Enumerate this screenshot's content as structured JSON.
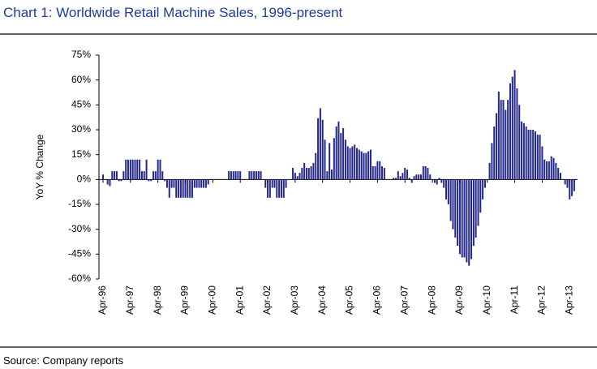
{
  "chart_data": {
    "type": "bar",
    "title": "Chart 1: Worldwide Retail Machine Sales, 1996-present",
    "y_label": "YoY % Change",
    "source": "Source: Company reports",
    "color": "#23288a",
    "ylim": [
      -60,
      75
    ],
    "yticks": [
      {
        "value": -60,
        "label": "-60%"
      },
      {
        "value": -45,
        "label": "-45%"
      },
      {
        "value": -30,
        "label": "-30%"
      },
      {
        "value": -15,
        "label": "-15%"
      },
      {
        "value": 0,
        "label": "0%"
      },
      {
        "value": 15,
        "label": "15%"
      },
      {
        "value": 30,
        "label": "30%"
      },
      {
        "value": 45,
        "label": "45%"
      },
      {
        "value": 60,
        "label": "60%"
      },
      {
        "value": 75,
        "label": "75%"
      }
    ],
    "categories": [
      "Apr-96",
      null,
      null,
      null,
      null,
      null,
      null,
      null,
      null,
      null,
      null,
      null,
      "Apr-97",
      null,
      null,
      null,
      null,
      null,
      null,
      null,
      null,
      null,
      null,
      null,
      "Apr-98",
      null,
      null,
      null,
      null,
      null,
      null,
      null,
      null,
      null,
      null,
      null,
      "Apr-99",
      null,
      null,
      null,
      null,
      null,
      null,
      null,
      null,
      null,
      null,
      null,
      "Apr-00",
      null,
      null,
      null,
      null,
      null,
      null,
      null,
      null,
      null,
      null,
      null,
      "Apr-01",
      null,
      null,
      null,
      null,
      null,
      null,
      null,
      null,
      null,
      null,
      null,
      "Apr-02",
      null,
      null,
      null,
      null,
      null,
      null,
      null,
      null,
      null,
      null,
      null,
      "Apr-03",
      null,
      null,
      null,
      null,
      null,
      null,
      null,
      null,
      null,
      null,
      null,
      "Apr-04",
      null,
      null,
      null,
      null,
      null,
      null,
      null,
      null,
      null,
      null,
      null,
      "Apr-05",
      null,
      null,
      null,
      null,
      null,
      null,
      null,
      null,
      null,
      null,
      null,
      "Apr-06",
      null,
      null,
      null,
      null,
      null,
      null,
      null,
      null,
      null,
      null,
      null,
      "Apr-07",
      null,
      null,
      null,
      null,
      null,
      null,
      null,
      null,
      null,
      null,
      null,
      "Apr-08",
      null,
      null,
      null,
      null,
      null,
      null,
      null,
      null,
      null,
      null,
      null,
      "Apr-09",
      null,
      null,
      null,
      null,
      null,
      null,
      null,
      null,
      null,
      null,
      null,
      "Apr-10",
      null,
      null,
      null,
      null,
      null,
      null,
      null,
      null,
      null,
      null,
      null,
      "Apr-11",
      null,
      null,
      null,
      null,
      null,
      null,
      null,
      null,
      null,
      null,
      null,
      "Apr-12",
      null,
      null,
      null,
      null,
      null,
      null,
      null,
      null,
      null,
      null,
      null,
      "Apr-13",
      null,
      null
    ],
    "values": [
      3,
      0,
      -3,
      -4,
      5,
      5,
      5,
      -1,
      -1,
      5,
      12,
      12,
      12,
      12,
      12,
      12,
      12,
      5,
      5,
      12,
      -1,
      -1,
      5,
      5,
      12,
      12,
      5,
      -1,
      -5,
      -11,
      -5,
      -5,
      -11,
      -11,
      -11,
      -11,
      -11,
      -11,
      -11,
      -11,
      -5,
      -5,
      -5,
      -5,
      -5,
      -5,
      -3,
      0,
      0,
      0,
      0,
      0,
      0,
      0,
      0,
      5,
      5,
      5,
      5,
      5,
      5,
      0,
      0,
      0,
      5,
      5,
      5,
      5,
      5,
      5,
      0,
      -5,
      -11,
      -11,
      -5,
      -5,
      -11,
      -11,
      -11,
      -11,
      -5,
      0,
      0,
      7,
      4,
      2,
      4,
      7,
      10,
      7,
      7,
      8,
      10,
      16,
      37,
      43,
      36,
      24,
      5,
      22,
      6,
      25,
      32,
      35,
      28,
      31,
      24,
      20,
      19,
      20,
      21,
      19,
      18,
      17,
      16,
      16,
      17,
      18,
      8,
      8,
      11,
      11,
      8,
      7,
      0,
      0,
      0,
      1,
      1,
      5,
      2,
      4,
      7,
      6,
      1,
      -2,
      2,
      3,
      3,
      3,
      8,
      8,
      7,
      3,
      0,
      -2,
      -3,
      1,
      -2,
      -5,
      -12,
      -15,
      -25,
      -30,
      -35,
      -40,
      -45,
      -47,
      -47,
      -50,
      -52,
      -48,
      -40,
      -35,
      -28,
      -20,
      -12,
      -5,
      0,
      10,
      22,
      32,
      40,
      53,
      48,
      48,
      42,
      48,
      58,
      62,
      66,
      55,
      45,
      35,
      34,
      32,
      30,
      30,
      30,
      29,
      27,
      27,
      20,
      12,
      11,
      11,
      14,
      13,
      10,
      7,
      4,
      0,
      -3,
      -5,
      -12,
      -10,
      -7
    ]
  }
}
